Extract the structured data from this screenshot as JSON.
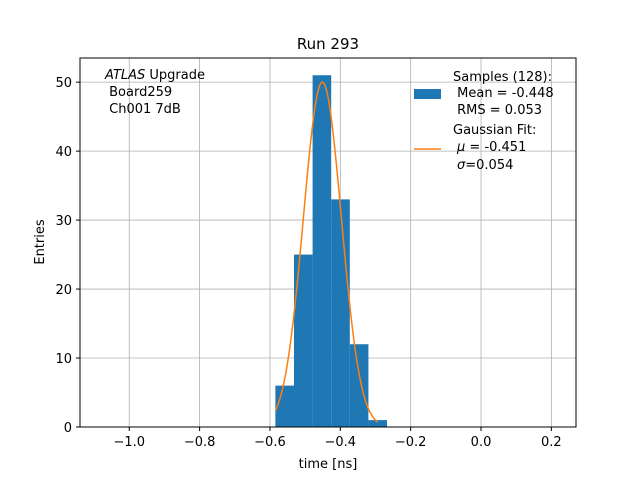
{
  "chart_data": {
    "type": "bar",
    "title": "Run 293",
    "xlabel": "time [ns]",
    "ylabel": "Entries",
    "xlim": [
      -1.14,
      0.27
    ],
    "ylim": [
      0,
      53.5
    ],
    "grid": true,
    "xticks": [
      -1.0,
      -0.8,
      -0.6,
      -0.4,
      -0.2,
      0.0,
      0.2
    ],
    "xtick_labels": [
      "−1.0",
      "−0.8",
      "−0.6",
      "−0.4",
      "−0.2",
      "0.0",
      "0.2"
    ],
    "yticks": [
      0,
      10,
      20,
      30,
      40,
      50
    ],
    "ytick_labels": [
      "0",
      "10",
      "20",
      "30",
      "40",
      "50"
    ],
    "histogram": {
      "bin_edges": [
        -0.5846,
        -0.5317,
        -0.4788,
        -0.4259,
        -0.373,
        -0.3201,
        -0.2672
      ],
      "counts": [
        6,
        25,
        51,
        33,
        12,
        1
      ],
      "color": "#1f77b4"
    },
    "fit": {
      "type": "gaussian",
      "mu": -0.451,
      "sigma": 0.054,
      "amplitude": 50,
      "x_range": [
        -0.5846,
        -0.2936
      ],
      "color": "#ff7f0e"
    },
    "annotation": {
      "line1_italic": "ATLAS",
      "line1_rest": " Upgrade",
      "line2": " Board259",
      "line3": " Ch001 7dB"
    },
    "legend": {
      "position": "top-right",
      "hist_entry": {
        "line1": "Samples (128):",
        "line2": " Mean = -0.448",
        "line3": " RMS = 0.053"
      },
      "fit_entry": {
        "line1": "Gaussian Fit:",
        "line2_symbol": "μ",
        "line2_rest": " = -0.451",
        "line3_symbol": "σ",
        "line3_rest": "=0.054"
      }
    }
  }
}
